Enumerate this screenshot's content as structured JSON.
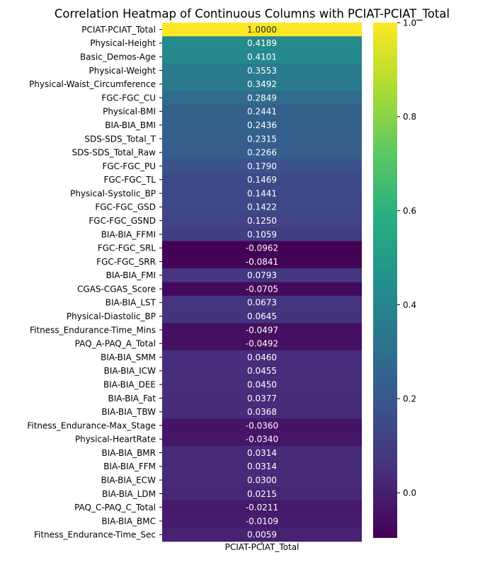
{
  "chart_data": {
    "type": "heatmap",
    "title": "Correlation Heatmap of Continuous Columns with PCIAT-PCIAT_Total",
    "column": "PCIAT-PCIAT_Total",
    "colormap": "viridis",
    "vmin": -0.0962,
    "vmax": 1.0,
    "colorbar_ticks": [
      0.0,
      0.2,
      0.4,
      0.6,
      0.8,
      1.0
    ],
    "rows": [
      {
        "label": "PCIAT-PCIAT_Total",
        "value": 1.0,
        "text": "1.0000"
      },
      {
        "label": "Physical-Height",
        "value": 0.4189,
        "text": "0.4189"
      },
      {
        "label": "Basic_Demos-Age",
        "value": 0.4101,
        "text": "0.4101"
      },
      {
        "label": "Physical-Weight",
        "value": 0.3553,
        "text": "0.3553"
      },
      {
        "label": "Physical-Waist_Circumference",
        "value": 0.3492,
        "text": "0.3492"
      },
      {
        "label": "FGC-FGC_CU",
        "value": 0.2849,
        "text": "0.2849"
      },
      {
        "label": "Physical-BMI",
        "value": 0.2441,
        "text": "0.2441"
      },
      {
        "label": "BIA-BIA_BMI",
        "value": 0.2436,
        "text": "0.2436"
      },
      {
        "label": "SDS-SDS_Total_T",
        "value": 0.2315,
        "text": "0.2315"
      },
      {
        "label": "SDS-SDS_Total_Raw",
        "value": 0.2266,
        "text": "0.2266"
      },
      {
        "label": "FGC-FGC_PU",
        "value": 0.179,
        "text": "0.1790"
      },
      {
        "label": "FGC-FGC_TL",
        "value": 0.1469,
        "text": "0.1469"
      },
      {
        "label": "Physical-Systolic_BP",
        "value": 0.1441,
        "text": "0.1441"
      },
      {
        "label": "FGC-FGC_GSD",
        "value": 0.1422,
        "text": "0.1422"
      },
      {
        "label": "FGC-FGC_GSND",
        "value": 0.125,
        "text": "0.1250"
      },
      {
        "label": "BIA-BIA_FFMI",
        "value": 0.1059,
        "text": "0.1059"
      },
      {
        "label": "FGC-FGC_SRL",
        "value": -0.0962,
        "text": "-0.0962"
      },
      {
        "label": "FGC-FGC_SRR",
        "value": -0.0841,
        "text": "-0.0841"
      },
      {
        "label": "BIA-BIA_FMI",
        "value": 0.0793,
        "text": "0.0793"
      },
      {
        "label": "CGAS-CGAS_Score",
        "value": -0.0705,
        "text": "-0.0705"
      },
      {
        "label": "BIA-BIA_LST",
        "value": 0.0673,
        "text": "0.0673"
      },
      {
        "label": "Physical-Diastolic_BP",
        "value": 0.0645,
        "text": "0.0645"
      },
      {
        "label": "Fitness_Endurance-Time_Mins",
        "value": -0.0497,
        "text": "-0.0497"
      },
      {
        "label": "PAQ_A-PAQ_A_Total",
        "value": -0.0492,
        "text": "-0.0492"
      },
      {
        "label": "BIA-BIA_SMM",
        "value": 0.046,
        "text": "0.0460"
      },
      {
        "label": "BIA-BIA_ICW",
        "value": 0.0455,
        "text": "0.0455"
      },
      {
        "label": "BIA-BIA_DEE",
        "value": 0.045,
        "text": "0.0450"
      },
      {
        "label": "BIA-BIA_Fat",
        "value": 0.0377,
        "text": "0.0377"
      },
      {
        "label": "BIA-BIA_TBW",
        "value": 0.0368,
        "text": "0.0368"
      },
      {
        "label": "Fitness_Endurance-Max_Stage",
        "value": -0.036,
        "text": "-0.0360"
      },
      {
        "label": "Physical-HeartRate",
        "value": -0.034,
        "text": "-0.0340"
      },
      {
        "label": "BIA-BIA_BMR",
        "value": 0.0314,
        "text": "0.0314"
      },
      {
        "label": "BIA-BIA_FFM",
        "value": 0.0314,
        "text": "0.0314"
      },
      {
        "label": "BIA-BIA_ECW",
        "value": 0.03,
        "text": "0.0300"
      },
      {
        "label": "BIA-BIA_LDM",
        "value": 0.0215,
        "text": "0.0215"
      },
      {
        "label": "PAQ_C-PAQ_C_Total",
        "value": -0.0211,
        "text": "-0.0211"
      },
      {
        "label": "BIA-BIA_BMC",
        "value": -0.0109,
        "text": "-0.0109"
      },
      {
        "label": "Fitness_Endurance-Time_Sec",
        "value": 0.0059,
        "text": "0.0059"
      }
    ]
  }
}
